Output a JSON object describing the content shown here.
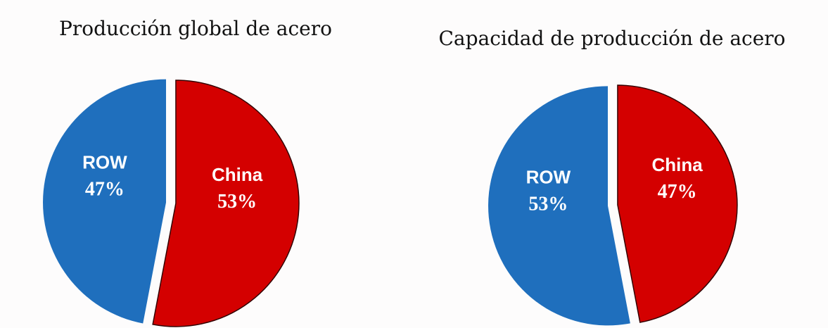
{
  "chart_data": [
    {
      "type": "pie",
      "title": "Producción global de acero",
      "categories": [
        "ROW",
        "China"
      ],
      "values": [
        47,
        53
      ],
      "value_labels": [
        "47%",
        "53%"
      ],
      "colors": [
        "#1f6fbd",
        "#d40000"
      ]
    },
    {
      "type": "pie",
      "title": "Capacidad de producción de acero",
      "categories": [
        "ROW",
        "China"
      ],
      "values": [
        53,
        47
      ],
      "value_labels": [
        "53%",
        "47%"
      ],
      "colors": [
        "#1f6fbd",
        "#d40000"
      ]
    }
  ]
}
